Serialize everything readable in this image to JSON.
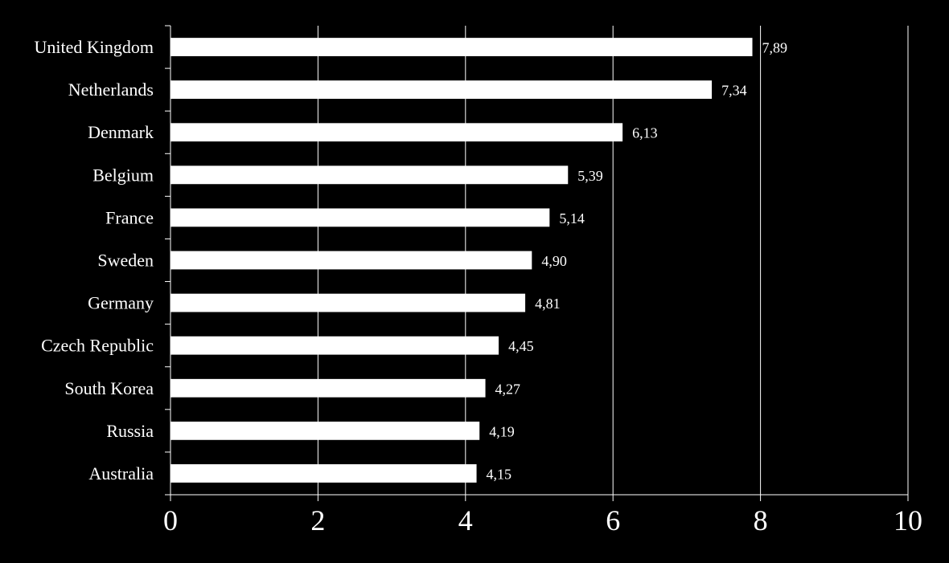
{
  "chart_data": {
    "type": "bar",
    "orientation": "horizontal",
    "title": "",
    "xlabel": "",
    "ylabel": "",
    "categories": [
      "United Kingdom",
      "Netherlands",
      "Denmark",
      "Belgium",
      "France",
      "Sweden",
      "Germany",
      "Czech Republic",
      "South Korea",
      "Russia",
      "Australia"
    ],
    "values": [
      7.89,
      7.34,
      6.13,
      5.39,
      5.14,
      4.9,
      4.81,
      4.45,
      4.27,
      4.19,
      4.15
    ],
    "value_labels": [
      "7,89",
      "7,34",
      "6,13",
      "5,39",
      "5,14",
      "4,90",
      "4,81",
      "4,45",
      "4,27",
      "4,19",
      "4,15"
    ],
    "xlim": [
      0,
      10
    ],
    "xticks": [
      0,
      2,
      4,
      6,
      8,
      10
    ],
    "xtick_labels": [
      "0",
      "2",
      "4",
      "6",
      "8",
      "10"
    ],
    "grid": "vertical",
    "legend": "none",
    "colors": {
      "background": "#000000",
      "bar": "#ffffff",
      "text": "#ffffff",
      "grid": "#ffffff"
    }
  }
}
